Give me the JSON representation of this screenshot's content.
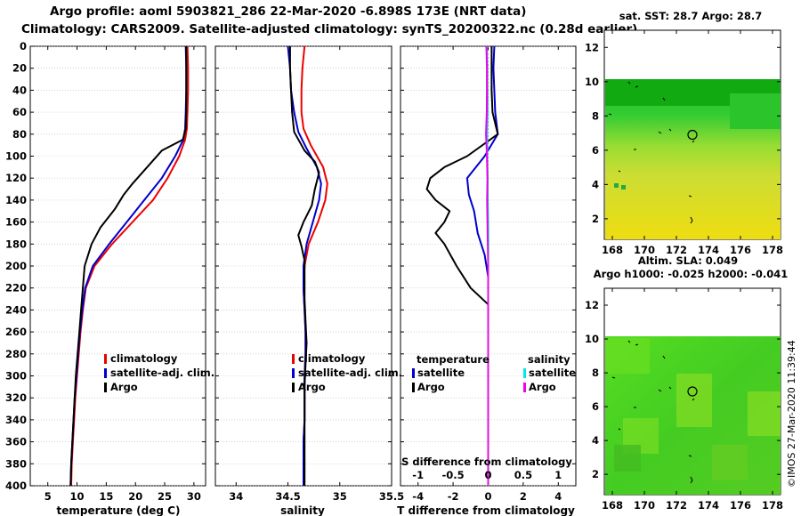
{
  "header": {
    "line1": "Argo profile: aoml 5903821_286 22-Mar-2020 -6.898S 173E (NRT data)",
    "line2": "Climatology: CARS2009. Satellite-adjusted climatology: synTS_20200322.nc (0.28d earlier)",
    "credit": "©IMOS 27-Mar-2020 11:39:44"
  },
  "colors": {
    "climatology": "#ee0000",
    "satellite": "#0000cc",
    "argo": "#000000",
    "sat_salinity": "#00e5ee",
    "argo_salinity": "#ee00ee"
  },
  "chart_data": [
    {
      "type": "line",
      "name": "temperature-profile",
      "xlabel": "temperature (deg C)",
      "ylabel": "depth",
      "xlim": [
        2,
        32
      ],
      "ylim": [
        400,
        0
      ],
      "xticks": [
        "5",
        "10",
        "15",
        "20",
        "25",
        "30"
      ],
      "yticks": [
        "0",
        "20",
        "40",
        "60",
        "80",
        "100",
        "120",
        "140",
        "160",
        "180",
        "200",
        "220",
        "240",
        "260",
        "280",
        "300",
        "320",
        "340",
        "360",
        "380",
        "400"
      ],
      "legend": [
        "climatology",
        "satellite-adj. clim.",
        "Argo"
      ],
      "series": [
        {
          "name": "climatology",
          "color": "#ee0000",
          "points": [
            [
              28.9,
              0
            ],
            [
              29,
              20
            ],
            [
              29,
              40
            ],
            [
              28.9,
              60
            ],
            [
              28.8,
              75
            ],
            [
              28.5,
              85
            ],
            [
              27.5,
              100
            ],
            [
              25.5,
              120
            ],
            [
              23,
              140
            ],
            [
              19.5,
              160
            ],
            [
              16,
              180
            ],
            [
              13,
              200
            ],
            [
              11.5,
              220
            ],
            [
              11,
              240
            ],
            [
              10.6,
              260
            ],
            [
              10.3,
              280
            ],
            [
              10,
              300
            ],
            [
              9.7,
              320
            ],
            [
              9.5,
              340
            ],
            [
              9.3,
              360
            ],
            [
              9.1,
              380
            ],
            [
              9,
              400
            ]
          ]
        },
        {
          "name": "satellite-adj. clim.",
          "color": "#0000cc",
          "points": [
            [
              28.6,
              0
            ],
            [
              28.7,
              20
            ],
            [
              28.7,
              40
            ],
            [
              28.6,
              60
            ],
            [
              28.5,
              75
            ],
            [
              28.2,
              85
            ],
            [
              26.8,
              100
            ],
            [
              24.5,
              120
            ],
            [
              21.5,
              140
            ],
            [
              18.5,
              160
            ],
            [
              15.5,
              180
            ],
            [
              12.7,
              200
            ],
            [
              11.4,
              220
            ],
            [
              10.9,
              240
            ],
            [
              10.5,
              260
            ],
            [
              10.2,
              280
            ],
            [
              9.9,
              300
            ],
            [
              9.6,
              320
            ],
            [
              9.4,
              340
            ],
            [
              9.2,
              360
            ],
            [
              9,
              380
            ],
            [
              8.9,
              400
            ]
          ]
        },
        {
          "name": "Argo",
          "color": "#000000",
          "points": [
            [
              28.7,
              0
            ],
            [
              28.7,
              20
            ],
            [
              28.7,
              40
            ],
            [
              28.7,
              60
            ],
            [
              28.6,
              75
            ],
            [
              28.1,
              85
            ],
            [
              24.5,
              95
            ],
            [
              22,
              110
            ],
            [
              19.5,
              125
            ],
            [
              18,
              135
            ],
            [
              16.5,
              148
            ],
            [
              14,
              165
            ],
            [
              12.5,
              180
            ],
            [
              11.3,
              200
            ],
            [
              11,
              220
            ],
            [
              10.7,
              240
            ],
            [
              10.4,
              260
            ],
            [
              10.1,
              280
            ],
            [
              9.8,
              300
            ],
            [
              9.6,
              320
            ],
            [
              9.4,
              340
            ],
            [
              9.2,
              360
            ],
            [
              9,
              380
            ],
            [
              8.9,
              400
            ]
          ]
        }
      ]
    },
    {
      "type": "line",
      "name": "salinity-profile",
      "xlabel": "salinity",
      "xlim": [
        33.8,
        35.5
      ],
      "ylim": [
        400,
        0
      ],
      "xticks": [
        "34",
        "34.5",
        "35",
        "35.5"
      ],
      "legend": [
        "climatology",
        "satellite-adj. clim.",
        "Argo"
      ],
      "series": [
        {
          "name": "climatology",
          "color": "#ee0000",
          "points": [
            [
              34.66,
              0
            ],
            [
              34.64,
              20
            ],
            [
              34.63,
              40
            ],
            [
              34.63,
              60
            ],
            [
              34.65,
              75
            ],
            [
              34.72,
              90
            ],
            [
              34.84,
              110
            ],
            [
              34.88,
              125
            ],
            [
              34.86,
              140
            ],
            [
              34.79,
              160
            ],
            [
              34.7,
              180
            ],
            [
              34.66,
              200
            ],
            [
              34.65,
              220
            ],
            [
              34.66,
              240
            ],
            [
              34.67,
              260
            ],
            [
              34.67,
              280
            ],
            [
              34.66,
              300
            ],
            [
              34.66,
              320
            ],
            [
              34.66,
              340
            ],
            [
              34.65,
              360
            ],
            [
              34.65,
              380
            ],
            [
              34.65,
              400
            ]
          ]
        },
        {
          "name": "satellite-adj. clim.",
          "color": "#0000cc",
          "points": [
            [
              34.5,
              0
            ],
            [
              34.52,
              20
            ],
            [
              34.53,
              40
            ],
            [
              34.56,
              60
            ],
            [
              34.6,
              78
            ],
            [
              34.68,
              93
            ],
            [
              34.78,
              110
            ],
            [
              34.82,
              125
            ],
            [
              34.8,
              140
            ],
            [
              34.74,
              160
            ],
            [
              34.68,
              180
            ],
            [
              34.65,
              200
            ],
            [
              34.65,
              220
            ],
            [
              34.66,
              240
            ],
            [
              34.67,
              260
            ],
            [
              34.67,
              280
            ],
            [
              34.66,
              300
            ],
            [
              34.66,
              320
            ],
            [
              34.66,
              340
            ],
            [
              34.65,
              360
            ],
            [
              34.65,
              380
            ],
            [
              34.65,
              400
            ]
          ]
        },
        {
          "name": "Argo",
          "color": "#000000",
          "points": [
            [
              34.52,
              0
            ],
            [
              34.52,
              20
            ],
            [
              34.53,
              40
            ],
            [
              34.54,
              60
            ],
            [
              34.56,
              78
            ],
            [
              34.66,
              95
            ],
            [
              34.76,
              105
            ],
            [
              34.8,
              115
            ],
            [
              34.76,
              130
            ],
            [
              34.73,
              145
            ],
            [
              34.65,
              160
            ],
            [
              34.6,
              172
            ],
            [
              34.63,
              182
            ],
            [
              34.66,
              195
            ],
            [
              34.66,
              210
            ],
            [
              34.66,
              230
            ],
            [
              34.67,
              250
            ],
            [
              34.68,
              270
            ],
            [
              34.67,
              290
            ],
            [
              34.66,
              310
            ],
            [
              34.66,
              330
            ],
            [
              34.66,
              350
            ],
            [
              34.66,
              370
            ],
            [
              34.66,
              400
            ]
          ]
        }
      ]
    },
    {
      "type": "line",
      "name": "difference-profile",
      "xlabel": "T difference from climatology",
      "xlabel2": "S difference from climatology",
      "xlim": [
        -5,
        5
      ],
      "ylim": [
        400,
        0
      ],
      "xticks": [
        "-4",
        "-2",
        "0",
        "2",
        "4"
      ],
      "xticks2": [
        "-1",
        "-0.5",
        "0",
        "0.5",
        "1"
      ],
      "legend_left_title": "temperature",
      "legend_right_title": "salinity",
      "legend_left": [
        "satellite",
        "Argo"
      ],
      "legend_right": [
        "satellite",
        "Argo"
      ],
      "series": [
        {
          "name": "T satellite",
          "color": "#0000cc",
          "points": [
            [
              0.35,
              0
            ],
            [
              0.3,
              20
            ],
            [
              0.35,
              40
            ],
            [
              0.4,
              60
            ],
            [
              0.55,
              80
            ],
            [
              -0.2,
              100
            ],
            [
              -1.2,
              120
            ],
            [
              -1.1,
              135
            ],
            [
              -0.8,
              150
            ],
            [
              -0.6,
              170
            ],
            [
              -0.2,
              190
            ],
            [
              0,
              210
            ],
            [
              0,
              240
            ],
            [
              0,
              280
            ],
            [
              0,
              320
            ],
            [
              0,
              360
            ],
            [
              0,
              400
            ]
          ]
        },
        {
          "name": "T Argo",
          "color": "#000000",
          "points": [
            [
              0.2,
              0
            ],
            [
              0.2,
              20
            ],
            [
              0.2,
              40
            ],
            [
              0.25,
              60
            ],
            [
              0.55,
              80
            ],
            [
              -1.2,
              100
            ],
            [
              -2.5,
              110
            ],
            [
              -3.3,
              120
            ],
            [
              -3.5,
              130
            ],
            [
              -3,
              140
            ],
            [
              -2.2,
              150
            ],
            [
              -2.5,
              160
            ],
            [
              -3,
              170
            ],
            [
              -2.5,
              180
            ],
            [
              -1.8,
              200
            ],
            [
              -1,
              220
            ],
            [
              0,
              235
            ],
            [
              0,
              280
            ],
            [
              0,
              320
            ],
            [
              0,
              360
            ],
            [
              0,
              400
            ]
          ]
        },
        {
          "name": "S satellite",
          "color": "#00e5ee",
          "points": [
            [
              -0.08,
              0
            ],
            [
              -0.05,
              20
            ],
            [
              -0.04,
              40
            ],
            [
              -0.03,
              60
            ],
            [
              -0.06,
              80
            ],
            [
              -0.05,
              100
            ],
            [
              -0.03,
              120
            ],
            [
              -0.02,
              140
            ],
            [
              0,
              160
            ],
            [
              0.01,
              180
            ],
            [
              0,
              200
            ],
            [
              0,
              240
            ],
            [
              0,
              280
            ],
            [
              0,
              320
            ],
            [
              0,
              360
            ],
            [
              0,
              400
            ]
          ]
        },
        {
          "name": "S Argo",
          "color": "#ee00ee",
          "points": [
            [
              -0.1,
              0
            ],
            [
              -0.07,
              20
            ],
            [
              -0.07,
              40
            ],
            [
              -0.08,
              60
            ],
            [
              -0.12,
              80
            ],
            [
              -0.07,
              100
            ],
            [
              -0.04,
              120
            ],
            [
              -0.06,
              140
            ],
            [
              -0.04,
              160
            ],
            [
              -0.02,
              180
            ],
            [
              0,
              200
            ],
            [
              0,
              240
            ],
            [
              0,
              280
            ],
            [
              0,
              320
            ],
            [
              0,
              360
            ],
            [
              0,
              400
            ]
          ]
        }
      ]
    },
    {
      "type": "heatmap",
      "name": "sst-map",
      "title": "sat. SST: 28.7 Argo: 28.7",
      "xlim": [
        167.5,
        178.5
      ],
      "ylim": [
        0.8,
        13
      ],
      "xticks": [
        "168",
        "170",
        "172",
        "174",
        "176",
        "178"
      ],
      "yticks": [
        "2",
        "4",
        "6",
        "8",
        "10",
        "12"
      ],
      "float_location": [
        173,
        6.9
      ]
    },
    {
      "type": "heatmap",
      "name": "sla-map",
      "title": "Altim. SLA: 0.049",
      "subtitle": "Argo h1000: -0.025 h2000: -0.041",
      "xlim": [
        167.5,
        178.5
      ],
      "ylim": [
        0.8,
        13
      ],
      "xticks": [
        "168",
        "170",
        "172",
        "174",
        "176",
        "178"
      ],
      "yticks": [
        "2",
        "4",
        "6",
        "8",
        "10",
        "12"
      ],
      "float_location": [
        173,
        6.9
      ]
    }
  ]
}
